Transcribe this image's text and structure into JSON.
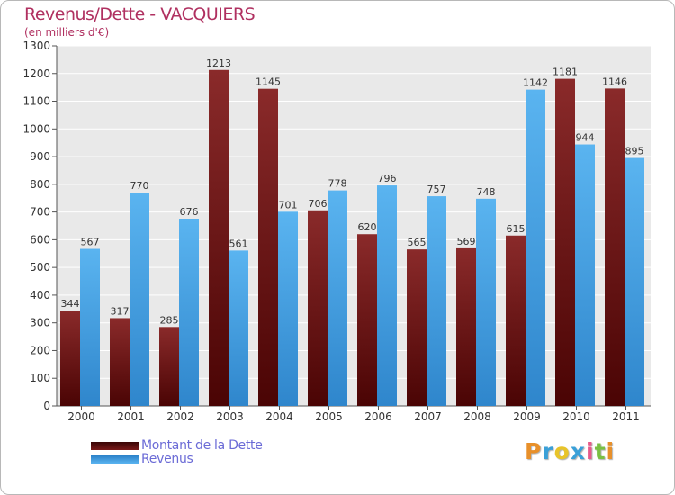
{
  "chart_data": {
    "type": "bar",
    "title": "Revenus/Dette - VACQUIERS",
    "subtitle": "(en milliers d'€)",
    "xlabel": "",
    "ylabel": "",
    "ylim": [
      0,
      1300
    ],
    "ytick_step": 100,
    "grid": true,
    "legend_position": "bottom-left",
    "categories": [
      "2000",
      "2001",
      "2002",
      "2003",
      "2004",
      "2005",
      "2006",
      "2007",
      "2008",
      "2009",
      "2010",
      "2011"
    ],
    "series": [
      {
        "name": "Montant de la Dette",
        "color": "#7a1a1a",
        "values": [
          344,
          317,
          285,
          1213,
          1145,
          706,
          620,
          565,
          569,
          615,
          1181,
          1146
        ]
      },
      {
        "name": "Revenus",
        "color": "#4aa3e6",
        "values": [
          567,
          770,
          676,
          561,
          701,
          778,
          796,
          757,
          748,
          1142,
          944,
          895
        ]
      }
    ]
  },
  "legend": {
    "debt_label": "Montant de la Dette",
    "revenue_label": "Revenus"
  },
  "logo": {
    "letters": [
      "P",
      "r",
      "o",
      "x",
      "i",
      "t",
      "i"
    ],
    "colors": [
      "#e8902a",
      "#3aa0d8",
      "#e8c42a",
      "#3aa0d8",
      "#e85a8a",
      "#7ac043",
      "#e8902a"
    ]
  }
}
